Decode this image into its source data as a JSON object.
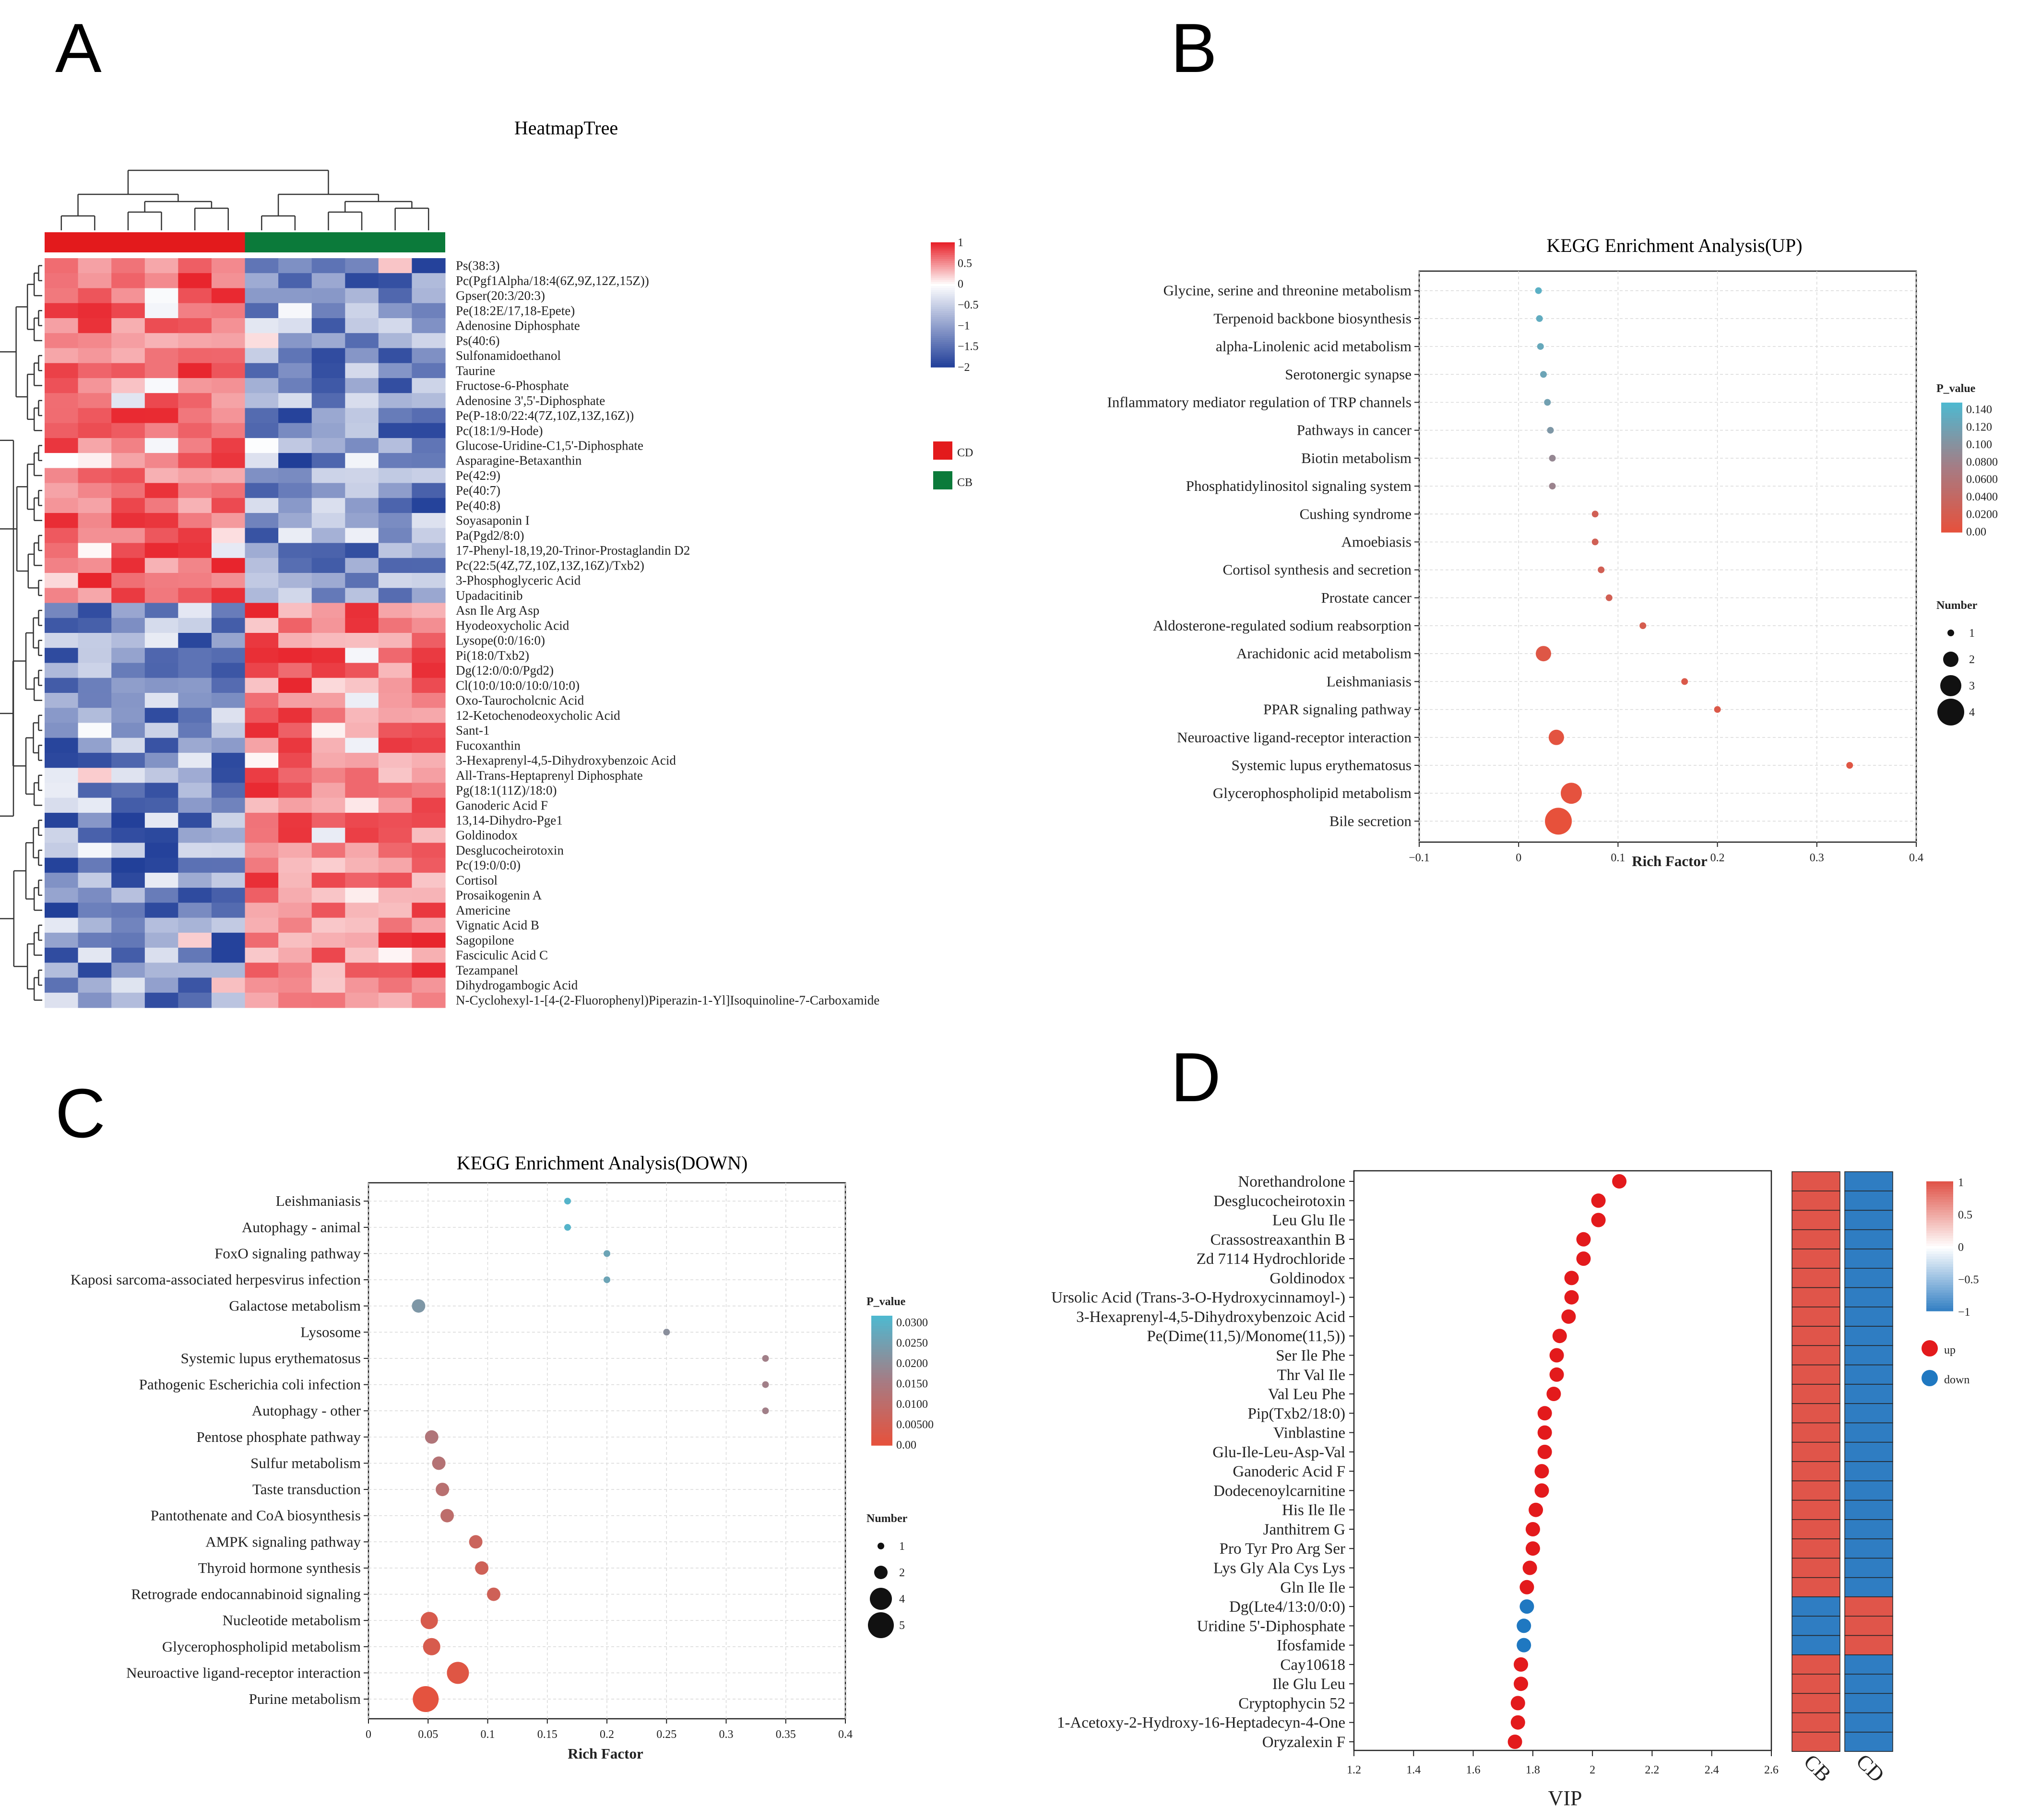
{
  "panel_labels": {
    "a": "A",
    "b": "B",
    "c": "C",
    "d": "D"
  },
  "chart_data": [
    {
      "id": "A",
      "type": "heatmap",
      "title": "HeatmapTree",
      "groups": [
        {
          "name": "CD",
          "color": "#e31a1c",
          "samples": 6
        },
        {
          "name": "CB",
          "color": "#0b7a3a",
          "samples": 6
        }
      ],
      "colorbar": {
        "min": -2,
        "max": 1,
        "ticks": [
          "1",
          "0.5",
          "0",
          "−0.5",
          "−1",
          "−1.5",
          "−2"
        ]
      },
      "row_pattern_note_values": "CD-high rows: first 23; CB-high rows: last 26",
      "rows": [
        "Ps(38:3)",
        "Pc(Pgf1Alpha/18:4(6Z,9Z,12Z,15Z))",
        "Gpser(20:3/20:3)",
        "Pe(18:2E/17,18-Epete)",
        "Adenosine Diphosphate",
        "Ps(40:6)",
        "Sulfonamidoethanol",
        "Taurine",
        "Fructose-6-Phosphate",
        "Adenosine 3',5'-Diphosphate",
        "Pe(P-18:0/22:4(7Z,10Z,13Z,16Z))",
        "Pc(18:1/9-Hode)",
        "Glucose-Uridine-C1,5'-Diphosphate",
        "Asparagine-Betaxanthin",
        "Pe(42:9)",
        "Pe(40:7)",
        "Pe(40:8)",
        "Soyasaponin I",
        "Pa(Pgd2/8:0)",
        "17-Phenyl-18,19,20-Trinor-Prostaglandin D2",
        "Pc(22:5(4Z,7Z,10Z,13Z,16Z)/Txb2)",
        "3-Phosphoglyceric Acid",
        "Upadacitinib",
        "Asn Ile Arg Asp",
        "Hyodeoxycholic Acid",
        "Lysope(0:0/16:0)",
        "Pi(18:0/Txb2)",
        "Dg(12:0/0:0/Pgd2)",
        "Cl(10:0/10:0/10:0/10:0)",
        "Oxo-Taurocholcnic Acid",
        "12-Ketochenodeoxycholic Acid",
        "Sant-1",
        "Fucoxanthin",
        "3-Hexaprenyl-4,5-Dihydroxybenzoic Acid",
        "All-Trans-Heptaprenyl Diphosphate",
        "Pg(18:1(11Z)/18:0)",
        "Ganoderic Acid F",
        "13,14-Dihydro-Pge1",
        "Goldinodox",
        "Desglucocheirotoxin",
        "Pc(19:0/0:0)",
        "Cortisol",
        "Prosaikogenin A",
        "Americine",
        "Vignatic Acid B",
        "Sagopilone",
        "Fasciculic Acid C",
        "Tezampanel",
        "Dihydrogambogic Acid",
        "N-Cyclohexyl-1-[4-(2-Fluorophenyl)Piperazin-1-Yl]Isoquinoline-7-Carboxamide"
      ]
    },
    {
      "id": "B",
      "type": "scatter",
      "title": "KEGG Enrichment Analysis(UP)",
      "xlabel": "Rich Factor",
      "xlim": [
        -0.1,
        0.4
      ],
      "xticks": [
        "−0.1",
        "0",
        "0.1",
        "0.2",
        "0.3",
        "0.4"
      ],
      "color_legend": {
        "title": "P_value",
        "ticks": [
          "0.140",
          "0.120",
          "0.100",
          "0.0800",
          "0.0600",
          "0.0400",
          "0.0200",
          "0.00"
        ],
        "max": 0.15
      },
      "size_legend": {
        "title": "Number",
        "values": [
          "1",
          "2",
          "3",
          "4"
        ]
      },
      "categories": [
        "Glycine, serine and threonine metabolism",
        "Terpenoid backbone biosynthesis",
        "alpha-Linolenic acid metabolism",
        "Serotonergic synapse",
        "Inflammatory mediator regulation of TRP channels",
        "Pathways in cancer",
        "Biotin metabolism",
        "Phosphatidylinositol signaling system",
        "Cushing syndrome",
        "Amoebiasis",
        "Cortisol synthesis and secretion",
        "Prostate cancer",
        "Aldosterone-regulated sodium reabsorption",
        "Arachidonic acid metabolism",
        "Leishmaniasis",
        "PPAR signaling pathway",
        "Neuroactive ligand-receptor interaction",
        "Systemic lupus erythematosus",
        "Glycerophospholipid metabolism",
        "Bile secretion"
      ],
      "x": [
        0.02,
        0.021,
        0.022,
        0.025,
        0.029,
        0.032,
        0.034,
        0.034,
        0.077,
        0.077,
        0.083,
        0.091,
        0.125,
        0.025,
        0.167,
        0.2,
        0.038,
        0.333,
        0.053,
        0.04
      ],
      "number": [
        1,
        1,
        1,
        1,
        1,
        1,
        1,
        1,
        1,
        1,
        1,
        1,
        1,
        2,
        1,
        1,
        2,
        1,
        3,
        4
      ],
      "p_value": [
        0.14,
        0.135,
        0.13,
        0.125,
        0.12,
        0.11,
        0.09,
        0.085,
        0.028,
        0.028,
        0.027,
        0.026,
        0.022,
        0.012,
        0.016,
        0.015,
        0.006,
        0.01,
        0.004,
        0.001
      ]
    },
    {
      "id": "C",
      "type": "scatter",
      "title": "KEGG Enrichment Analysis(DOWN)",
      "xlabel": "Rich Factor",
      "xlim": [
        0,
        0.4
      ],
      "xticks": [
        "0",
        "0.05",
        "0.1",
        "0.15",
        "0.2",
        "0.25",
        "0.3",
        "0.35",
        "0.4"
      ],
      "color_legend": {
        "title": "P_value",
        "ticks": [
          "0.0300",
          "0.0250",
          "0.0200",
          "0.0150",
          "0.0100",
          "0.00500",
          "0.00"
        ],
        "max": 0.03
      },
      "size_legend": {
        "title": "Number",
        "values": [
          "1",
          "2",
          "4",
          "5"
        ]
      },
      "categories": [
        "Leishmaniasis",
        "Autophagy - animal",
        "FoxO signaling pathway",
        "Kaposi sarcoma-associated herpesvirus infection",
        "Galactose metabolism",
        "Lysosome",
        "Systemic lupus erythematosus",
        "Pathogenic Escherichia coli infection",
        "Autophagy - other",
        "Pentose phosphate pathway",
        "Sulfur metabolism",
        "Taste transduction",
        "Pantothenate and CoA biosynthesis",
        "AMPK signaling pathway",
        "Thyroid hormone synthesis",
        "Retrograde endocannabinoid signaling",
        "Nucleotide metabolism",
        "Glycerophospholipid metabolism",
        "Neuroactive ligand-receptor interaction",
        "Purine metabolism"
      ],
      "x": [
        0.167,
        0.167,
        0.2,
        0.2,
        0.042,
        0.25,
        0.333,
        0.333,
        0.333,
        0.053,
        0.059,
        0.062,
        0.066,
        0.09,
        0.095,
        0.105,
        0.051,
        0.053,
        0.075,
        0.048
      ],
      "number": [
        1,
        1,
        1,
        1,
        2,
        1,
        1,
        1,
        1,
        2,
        2,
        2,
        2,
        2,
        2,
        2,
        3,
        3,
        4,
        5
      ],
      "p_value": [
        0.029,
        0.029,
        0.025,
        0.025,
        0.022,
        0.02,
        0.016,
        0.016,
        0.016,
        0.013,
        0.012,
        0.011,
        0.01,
        0.007,
        0.006,
        0.006,
        0.004,
        0.004,
        0.002,
        0.001
      ]
    },
    {
      "id": "D",
      "type": "scatter",
      "xlabel": "VIP",
      "xlim": [
        1.2,
        2.6
      ],
      "xticks": [
        "1.2",
        "1.4",
        "1.6",
        "1.8",
        "2",
        "2.2",
        "2.4",
        "2.6"
      ],
      "legend": [
        {
          "name": "up",
          "color": "#e31a1c"
        },
        {
          "name": "down",
          "color": "#1f78c1"
        }
      ],
      "heat_columns": [
        "CB",
        "CD"
      ],
      "colorbar_ticks": [
        "1",
        "0.5",
        "0",
        "−0.5",
        "−1"
      ],
      "categories": [
        "Norethandrolone",
        "Desglucocheirotoxin",
        "Leu Glu Ile",
        "Crassostreaxanthin B",
        "Zd 7114 Hydrochloride",
        "Goldinodox",
        "Ursolic Acid (Trans-3-O-Hydroxycinnamoyl-)",
        "3-Hexaprenyl-4,5-Dihydroxybenzoic Acid",
        "Pe(Dime(11,5)/Monome(11,5))",
        "Ser Ile Phe",
        "Thr Val Ile",
        "Val Leu Phe",
        "Pip(Txb2/18:0)",
        "Vinblastine",
        "Glu-Ile-Leu-Asp-Val",
        "Ganoderic Acid F",
        "Dodecenoylcarnitine",
        "His Ile Ile",
        "Janthitrem G",
        "Pro Tyr Pro Arg Ser",
        "Lys Gly Ala Cys Lys",
        "Gln Ile Ile",
        "Dg(Lte4/13:0/0:0)",
        "Uridine 5'-Diphosphate",
        "Ifosfamide",
        "Cay10618",
        "Ile Glu Leu",
        "Cryptophycin 52",
        "1-Acetoxy-2-Hydroxy-16-Heptadecyn-4-One",
        "Oryzalexin F"
      ],
      "vip": [
        2.09,
        2.02,
        2.02,
        1.97,
        1.97,
        1.93,
        1.93,
        1.92,
        1.89,
        1.88,
        1.88,
        1.87,
        1.84,
        1.84,
        1.84,
        1.83,
        1.83,
        1.81,
        1.8,
        1.8,
        1.79,
        1.78,
        1.78,
        1.77,
        1.77,
        1.76,
        1.76,
        1.75,
        1.75,
        1.74
      ],
      "direction": [
        "up",
        "up",
        "up",
        "up",
        "up",
        "up",
        "up",
        "up",
        "up",
        "up",
        "up",
        "up",
        "up",
        "up",
        "up",
        "up",
        "up",
        "up",
        "up",
        "up",
        "up",
        "up",
        "down",
        "down",
        "down",
        "up",
        "up",
        "up",
        "up",
        "up"
      ]
    }
  ]
}
